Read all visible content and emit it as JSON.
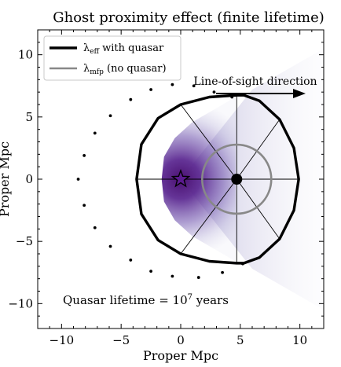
{
  "chart_data": {
    "type": "scatter",
    "title": "Ghost proximity effect (finite lifetime)",
    "xlabel": "Proper Mpc",
    "ylabel": "Proper Mpc",
    "xlim": [
      -12,
      12
    ],
    "ylim": [
      -12,
      12
    ],
    "xticks": [
      -10,
      -5,
      0,
      5,
      10
    ],
    "yticks": [
      -10,
      -5,
      0,
      5,
      10
    ],
    "xtick_labels": [
      "−10",
      "−5",
      "0",
      "5",
      "10"
    ],
    "ytick_labels": [
      "−10",
      "−5",
      "0",
      "5",
      "10"
    ],
    "grid": false,
    "legend": {
      "placement": "top-left",
      "entries": [
        {
          "symbol": "λ",
          "sub": "eff",
          "rest": " with quasar",
          "color": "#000000"
        },
        {
          "symbol": "λ",
          "sub": "mfp",
          "rest": " (no quasar)",
          "color": "#888888"
        }
      ]
    },
    "quasar": {
      "x": 0.0,
      "y": 0.0,
      "color": "#5b1a8f"
    },
    "observer_point": {
      "x": 4.7,
      "y": 0.0
    },
    "lambda_mfp_circle": {
      "cx": 4.7,
      "cy": 0.0,
      "r": 2.9,
      "color": "#888888"
    },
    "lambda_eff_contour": [
      [
        -3.7,
        0.0
      ],
      [
        -3.3,
        2.8
      ],
      [
        -1.9,
        4.9
      ],
      [
        0.0,
        6.0
      ],
      [
        2.4,
        6.6
      ],
      [
        4.7,
        6.75
      ],
      [
        5.3,
        6.75
      ],
      [
        6.6,
        6.3
      ],
      [
        8.3,
        4.8
      ],
      [
        9.5,
        2.5
      ],
      [
        9.9,
        0.0
      ],
      [
        9.5,
        -2.5
      ],
      [
        8.3,
        -4.8
      ],
      [
        6.6,
        -6.3
      ],
      [
        5.3,
        -6.75
      ],
      [
        4.7,
        -6.75
      ],
      [
        2.4,
        -6.6
      ],
      [
        0.0,
        -6.0
      ],
      [
        -1.9,
        -4.9
      ],
      [
        -3.3,
        -2.8
      ]
    ],
    "lifetime_points": [
      [
        -8.6,
        0.0
      ],
      [
        -8.1,
        1.9
      ],
      [
        -8.1,
        -2.1
      ],
      [
        -7.2,
        3.7
      ],
      [
        -7.2,
        -3.9
      ],
      [
        -5.9,
        5.1
      ],
      [
        -5.9,
        -5.4
      ],
      [
        -4.2,
        6.4
      ],
      [
        -4.2,
        -6.5
      ],
      [
        -2.5,
        7.2
      ],
      [
        -2.5,
        -7.4
      ],
      [
        -0.7,
        7.6
      ],
      [
        -0.7,
        -7.8
      ],
      [
        1.1,
        7.5
      ],
      [
        1.5,
        -7.9
      ],
      [
        2.8,
        7.0
      ],
      [
        3.5,
        -7.5
      ],
      [
        4.3,
        6.6
      ],
      [
        5.2,
        -6.8
      ]
    ],
    "annotations": {
      "los_label": "Line-of-sight direction",
      "lifetime_text": "Quasar lifetime = 10",
      "lifetime_exp": "7",
      "lifetime_unit": " years"
    }
  }
}
